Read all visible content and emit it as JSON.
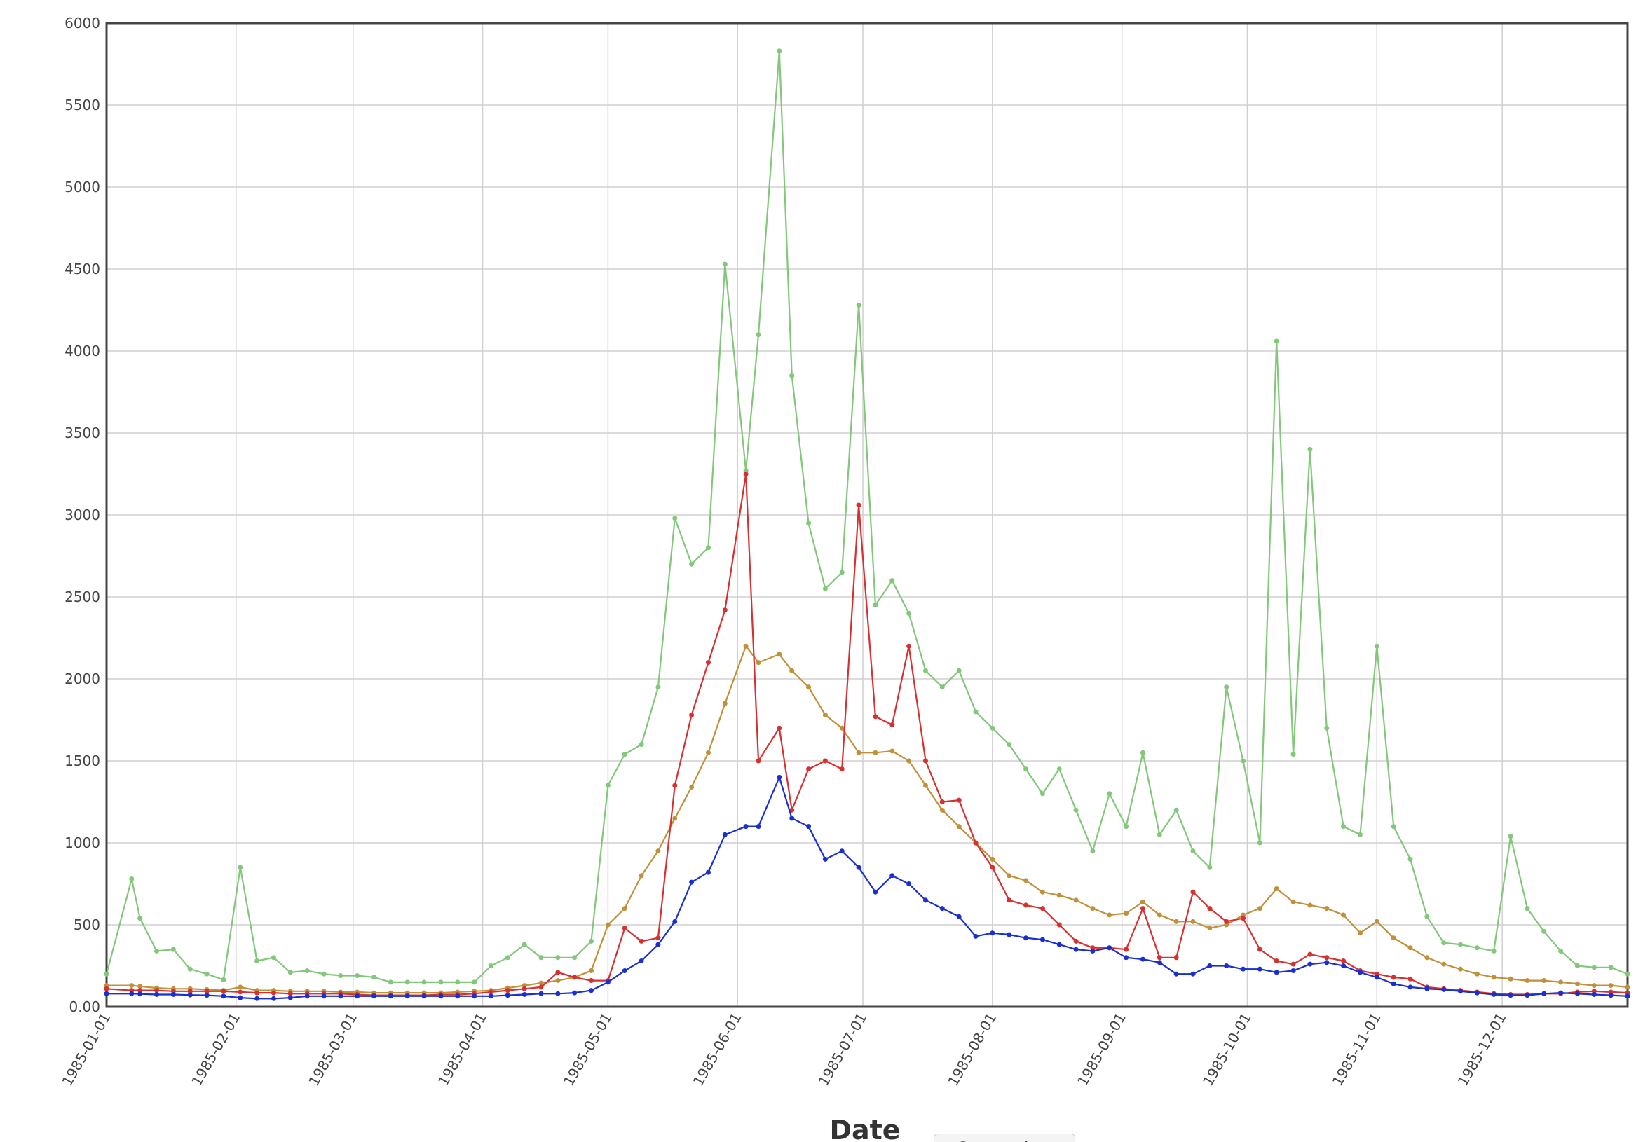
{
  "chart_data": {
    "type": "line",
    "xlabel": "Date",
    "x": [
      "1985-01-01",
      "1985-01-07",
      "1985-01-09",
      "1985-01-13",
      "1985-01-17",
      "1985-01-21",
      "1985-01-25",
      "1985-01-29",
      "1985-02-02",
      "1985-02-06",
      "1985-02-10",
      "1985-02-14",
      "1985-02-18",
      "1985-02-22",
      "1985-02-26",
      "1985-03-02",
      "1985-03-06",
      "1985-03-10",
      "1985-03-14",
      "1985-03-18",
      "1985-03-22",
      "1985-03-26",
      "1985-03-30",
      "1985-04-03",
      "1985-04-07",
      "1985-04-11",
      "1985-04-15",
      "1985-04-19",
      "1985-04-23",
      "1985-04-27",
      "1985-05-01",
      "1985-05-05",
      "1985-05-09",
      "1985-05-13",
      "1985-05-17",
      "1985-05-21",
      "1985-05-25",
      "1985-05-29",
      "1985-06-03",
      "1985-06-06",
      "1985-06-11",
      "1985-06-14",
      "1985-06-18",
      "1985-06-22",
      "1985-06-26",
      "1985-06-30",
      "1985-07-04",
      "1985-07-08",
      "1985-07-12",
      "1985-07-16",
      "1985-07-20",
      "1985-07-24",
      "1985-07-28",
      "1985-08-01",
      "1985-08-05",
      "1985-08-09",
      "1985-08-13",
      "1985-08-17",
      "1985-08-21",
      "1985-08-25",
      "1985-08-29",
      "1985-09-02",
      "1985-09-06",
      "1985-09-10",
      "1985-09-14",
      "1985-09-18",
      "1985-09-22",
      "1985-09-26",
      "1985-09-30",
      "1985-10-04",
      "1985-10-08",
      "1985-10-12",
      "1985-10-16",
      "1985-10-20",
      "1985-10-24",
      "1985-10-28",
      "1985-11-01",
      "1985-11-05",
      "1985-11-09",
      "1985-11-13",
      "1985-11-17",
      "1985-11-21",
      "1985-11-25",
      "1985-11-29",
      "1985-12-03",
      "1985-12-07",
      "1985-12-11",
      "1985-12-15",
      "1985-12-19",
      "1985-12-23",
      "1985-12-27",
      "1985-12-31"
    ],
    "series": [
      {
        "color": "#82c77a",
        "values": [
          200,
          780,
          540,
          340,
          350,
          230,
          200,
          165,
          850,
          280,
          300,
          210,
          220,
          200,
          190,
          190,
          180,
          150,
          150,
          150,
          150,
          150,
          150,
          250,
          300,
          380,
          300,
          300,
          300,
          400,
          1350,
          1540,
          1600,
          1950,
          2980,
          2700,
          2800,
          4530,
          3270,
          4100,
          5830,
          3850,
          2950,
          2550,
          2650,
          4280,
          2450,
          2600,
          2400,
          2050,
          1950,
          2050,
          1800,
          1700,
          1600,
          1450,
          1300,
          1450,
          1200,
          950,
          1300,
          1100,
          1550,
          1050,
          1200,
          950,
          850,
          1950,
          1500,
          1000,
          4060,
          1540,
          3400,
          1700,
          1100,
          1050,
          2200,
          1100,
          900,
          550,
          390,
          380,
          360,
          340,
          1040,
          600,
          460,
          340,
          250,
          240,
          240,
          200
        ]
      },
      {
        "color": "#c0913a",
        "values": [
          130,
          130,
          125,
          115,
          110,
          110,
          105,
          100,
          120,
          100,
          100,
          95,
          95,
          95,
          90,
          90,
          85,
          85,
          85,
          85,
          85,
          90,
          95,
          100,
          115,
          130,
          145,
          160,
          180,
          220,
          500,
          600,
          800,
          950,
          1150,
          1340,
          1550,
          1850,
          2200,
          2100,
          2150,
          2050,
          1950,
          1780,
          1700,
          1550,
          1550,
          1560,
          1500,
          1350,
          1200,
          1100,
          1000,
          900,
          800,
          770,
          700,
          680,
          650,
          600,
          560,
          570,
          640,
          560,
          520,
          520,
          480,
          500,
          560,
          600,
          720,
          640,
          620,
          600,
          560,
          450,
          520,
          420,
          360,
          300,
          260,
          230,
          200,
          180,
          170,
          160,
          160,
          150,
          140,
          130,
          130,
          120
        ]
      },
      {
        "color": "#d63030",
        "values": [
          110,
          100,
          100,
          100,
          95,
          95,
          95,
          95,
          90,
          85,
          85,
          80,
          80,
          80,
          80,
          75,
          70,
          70,
          70,
          70,
          75,
          75,
          80,
          90,
          100,
          110,
          120,
          210,
          180,
          160,
          160,
          480,
          400,
          420,
          1350,
          1780,
          2100,
          2420,
          3250,
          1500,
          1700,
          1200,
          1450,
          1500,
          1450,
          3060,
          1770,
          1720,
          2200,
          1500,
          1250,
          1260,
          1000,
          850,
          650,
          620,
          600,
          500,
          400,
          360,
          360,
          350,
          600,
          300,
          300,
          700,
          600,
          520,
          540,
          350,
          280,
          260,
          320,
          300,
          280,
          220,
          200,
          180,
          170,
          120,
          110,
          100,
          90,
          80,
          75,
          75,
          80,
          80,
          90,
          95,
          90,
          85
        ]
      },
      {
        "color": "#1a2fd0",
        "values": [
          80,
          80,
          78,
          75,
          75,
          72,
          70,
          65,
          55,
          50,
          50,
          55,
          65,
          65,
          65,
          65,
          65,
          65,
          65,
          65,
          65,
          65,
          65,
          65,
          70,
          75,
          80,
          80,
          85,
          100,
          150,
          220,
          280,
          380,
          520,
          760,
          820,
          1050,
          1100,
          1100,
          1400,
          1150,
          1100,
          900,
          950,
          850,
          700,
          800,
          750,
          650,
          600,
          550,
          430,
          450,
          440,
          420,
          410,
          380,
          350,
          340,
          360,
          300,
          290,
          270,
          200,
          200,
          250,
          250,
          230,
          230,
          210,
          220,
          260,
          270,
          250,
          210,
          180,
          140,
          120,
          110,
          105,
          95,
          85,
          75,
          70,
          70,
          80,
          85,
          80,
          75,
          70,
          65
        ]
      }
    ],
    "xlim": [
      "1985-01-01",
      "1985-12-31"
    ],
    "xticks": [
      "1985-01-01",
      "1985-02-01",
      "1985-03-01",
      "1985-04-01",
      "1985-05-01",
      "1985-06-01",
      "1985-07-01",
      "1985-08-01",
      "1985-09-01",
      "1985-10-01",
      "1985-11-01",
      "1985-12-01"
    ],
    "ylim": [
      0,
      6000
    ],
    "yticks": [
      {
        "value": 0,
        "label": "0.00"
      },
      500,
      1000,
      1500,
      2000,
      2500,
      3000,
      3500,
      4000,
      4500,
      5000,
      5500,
      6000
    ],
    "grid": true
  },
  "screenshot_button": "Screenshot"
}
